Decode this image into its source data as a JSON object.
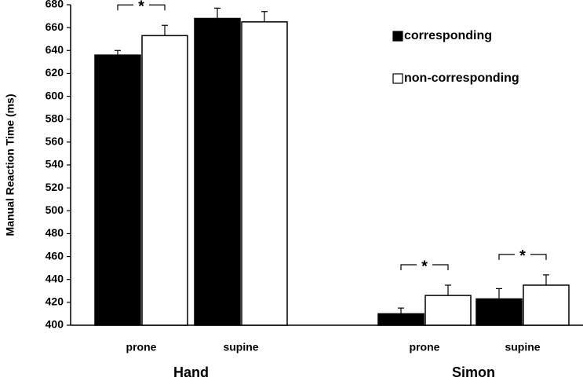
{
  "chart_data": {
    "type": "bar",
    "y_label": "Manual Reaction Time (ms)",
    "categories": [
      "prone",
      "supine",
      "prone",
      "supine"
    ],
    "groups": [
      "Hand",
      "Simon"
    ],
    "series": [
      {
        "name": "corresponding",
        "color": "#000000",
        "values": [
          636,
          668,
          410,
          423
        ],
        "errors": [
          4,
          9,
          5,
          9
        ]
      },
      {
        "name": "non-corresponding",
        "color": "#ffffff",
        "values": [
          653,
          665,
          426,
          435
        ],
        "errors": [
          9,
          9,
          9,
          9
        ]
      }
    ],
    "significance": [
      "*",
      null,
      "*",
      "*"
    ],
    "ylim": [
      400,
      680
    ],
    "yticks": [
      400,
      420,
      440,
      460,
      480,
      500,
      520,
      540,
      560,
      580,
      600,
      620,
      640,
      660,
      680
    ],
    "legend": "top-right"
  }
}
